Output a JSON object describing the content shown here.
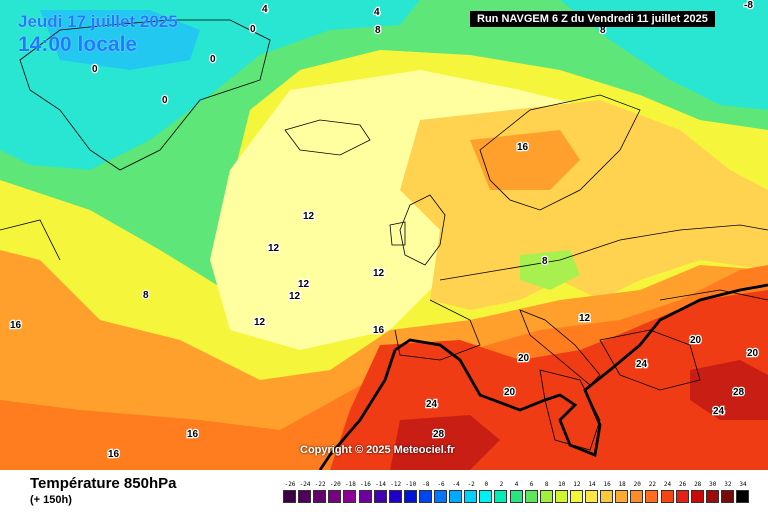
{
  "header": {
    "date": "Jeudi 17 juillet 2025",
    "time": "14:00 locale",
    "run": "Run NAVGEM 6 Z du Vendredi 11 juillet 2025"
  },
  "map": {
    "copyright": "Copyright © 2025 Meteociel.fr",
    "isotherm_labels": [
      {
        "text": "4",
        "name": "isotherm-4-greenland"
      },
      {
        "text": "4",
        "name": "isotherm-4-north"
      },
      {
        "text": "-8",
        "name": "isotherm-minus8-corner"
      },
      {
        "text": "8",
        "name": "isotherm-8-north"
      },
      {
        "text": "8",
        "name": "isotherm-8-east"
      },
      {
        "text": "0",
        "name": "isotherm-0-a"
      },
      {
        "text": "0",
        "name": "isotherm-0-b"
      },
      {
        "text": "0",
        "name": "isotherm-0-c"
      },
      {
        "text": "0",
        "name": "isotherm-0-d"
      },
      {
        "text": "16",
        "name": "isotherm-16-norway"
      },
      {
        "text": "12",
        "name": "isotherm-12-a"
      },
      {
        "text": "12",
        "name": "isotherm-12-b"
      },
      {
        "text": "12",
        "name": "isotherm-12-c"
      },
      {
        "text": "12",
        "name": "isotherm-12-d"
      },
      {
        "text": "12",
        "name": "isotherm-12-e"
      },
      {
        "text": "12",
        "name": "isotherm-12-f"
      },
      {
        "text": "12",
        "name": "isotherm-12-alps"
      },
      {
        "text": "8",
        "name": "isotherm-8-atlantic"
      },
      {
        "text": "8",
        "name": "isotherm-8-germany"
      },
      {
        "text": "16",
        "name": "isotherm-16-west"
      },
      {
        "text": "16",
        "name": "isotherm-16-spain"
      },
      {
        "text": "16",
        "name": "isotherm-16-sw-a"
      },
      {
        "text": "16",
        "name": "isotherm-16-sw-b"
      },
      {
        "text": "20",
        "name": "isotherm-20-italy"
      },
      {
        "text": "20",
        "name": "isotherm-20-sardinia"
      },
      {
        "text": "20",
        "name": "isotherm-20-turkey"
      },
      {
        "text": "20",
        "name": "isotherm-20-east"
      },
      {
        "text": "24",
        "name": "isotherm-24-balkans"
      },
      {
        "text": "24",
        "name": "isotherm-24-spain"
      },
      {
        "text": "24",
        "name": "isotherm-24-east"
      },
      {
        "text": "28",
        "name": "isotherm-28-africa"
      },
      {
        "text": "28",
        "name": "isotherm-28-east"
      }
    ],
    "colors": {
      "cold_blue": "#23c8f0",
      "cyan": "#28e6d2",
      "green": "#5fe678",
      "lime": "#a8f050",
      "yellow": "#f5f53c",
      "pale_yellow": "#ffffa0",
      "light_orange": "#ffd250",
      "orange": "#ffa02d",
      "dark_orange": "#ff7d1e",
      "red": "#f03c14",
      "dark_red": "#c81e14",
      "contour": "#000000"
    }
  },
  "legend": {
    "title": "Température 850hPa",
    "subtitle": "(+ 150h)",
    "scale": [
      {
        "label": "-26",
        "color": "#3c0046"
      },
      {
        "label": "-24",
        "color": "#50005a"
      },
      {
        "label": "-22",
        "color": "#64006e"
      },
      {
        "label": "-20",
        "color": "#780082"
      },
      {
        "label": "-18",
        "color": "#8c0096"
      },
      {
        "label": "-16",
        "color": "#6e00a0"
      },
      {
        "label": "-14",
        "color": "#4600b4"
      },
      {
        "label": "-12",
        "color": "#1e00c8"
      },
      {
        "label": "-10",
        "color": "#0014dc"
      },
      {
        "label": "-8",
        "color": "#0046f0"
      },
      {
        "label": "-6",
        "color": "#0078ff"
      },
      {
        "label": "-4",
        "color": "#00aaff"
      },
      {
        "label": "-2",
        "color": "#00d2ff"
      },
      {
        "label": "0",
        "color": "#00f0f0"
      },
      {
        "label": "2",
        "color": "#00f0b4"
      },
      {
        "label": "4",
        "color": "#28e682"
      },
      {
        "label": "6",
        "color": "#5fe65a"
      },
      {
        "label": "8",
        "color": "#a0f03c"
      },
      {
        "label": "10",
        "color": "#d2f532"
      },
      {
        "label": "12",
        "color": "#f5f53c"
      },
      {
        "label": "14",
        "color": "#ffe646"
      },
      {
        "label": "16",
        "color": "#ffc83c"
      },
      {
        "label": "18",
        "color": "#ffaa32"
      },
      {
        "label": "20",
        "color": "#ff8c28"
      },
      {
        "label": "22",
        "color": "#ff6e1e"
      },
      {
        "label": "24",
        "color": "#f54614"
      },
      {
        "label": "26",
        "color": "#e61e14"
      },
      {
        "label": "28",
        "color": "#c80a0a"
      },
      {
        "label": "30",
        "color": "#a00a0a"
      },
      {
        "label": "32",
        "color": "#780a0a"
      },
      {
        "label": "34",
        "color": "#000000"
      }
    ]
  }
}
